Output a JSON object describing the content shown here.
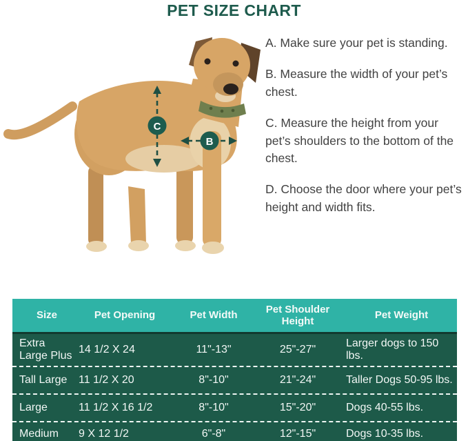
{
  "title": "PET SIZE CHART",
  "colors": {
    "title_green": "#1e5b4d",
    "header_teal": "#2fb3a6",
    "row_dark_green": "#1d5a49",
    "marker_green": "#1d5c4e",
    "body_text": "#424242"
  },
  "instructions": {
    "items": [
      "A. Make sure your pet is standing.",
      "B. Measure the width of your pet’s chest.",
      "C. Measure the height from your pet’s shoulders to the bottom of the chest.",
      "D. Choose the door where your pet’s height and width fits."
    ]
  },
  "diagram": {
    "description": "Tan dog standing in side view with measurement arrows",
    "marker_b": "B",
    "marker_c": "C"
  },
  "chart_data": {
    "type": "table",
    "title": "PET SIZE CHART",
    "columns": [
      "Size",
      "Pet Opening",
      "Pet Width",
      "Pet Shoulder Height",
      "Pet Weight"
    ],
    "rows": [
      [
        "Extra Large Plus",
        "14 1/2 X 24",
        "11\"-13\"",
        "25\"-27\"",
        "Larger dogs to 150 lbs."
      ],
      [
        "Tall Large",
        "11 1/2 X 20",
        "8\"-10\"",
        "21\"-24\"",
        "Taller Dogs 50-95 lbs."
      ],
      [
        "Large",
        "11 1/2 X 16 1/2",
        "8\"-10\"",
        "15\"-20\"",
        "Dogs 40-55 lbs."
      ],
      [
        "Medium",
        "9 X 12 1/2",
        "6\"-8\"",
        "12\"-15\"",
        "Dogs 10-35 lbs."
      ]
    ]
  }
}
